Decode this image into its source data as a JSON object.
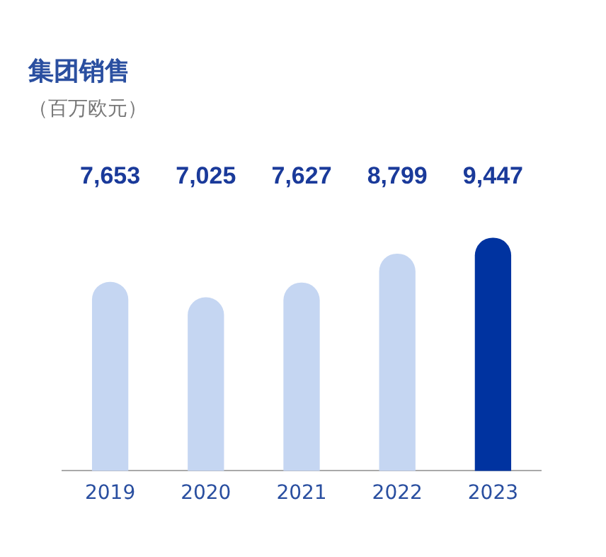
{
  "chart_data": {
    "type": "bar",
    "title": "集团销售",
    "subtitle": "（百万欧元）",
    "categories": [
      "2019",
      "2020",
      "2021",
      "2022",
      "2023"
    ],
    "values": [
      7653,
      7025,
      7627,
      8799,
      9447
    ],
    "colors": [
      "#c5d6f2",
      "#c5d6f2",
      "#c5d6f2",
      "#c5d6f2",
      "#0033a0"
    ],
    "value_labels": [
      "7,653",
      "7,025",
      "7,627",
      "8,799",
      "9,447"
    ],
    "grid": false,
    "legend": false
  }
}
